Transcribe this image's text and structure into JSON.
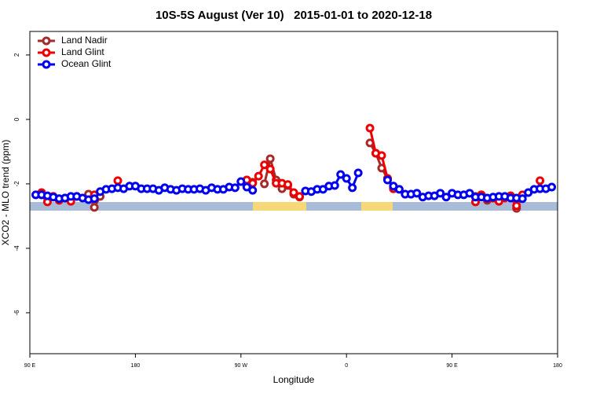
{
  "chart_data": {
    "type": "line",
    "title": "10S-5S August (Ver 10)   2015-01-01 to 2020-12-18",
    "x_label": "Longitude",
    "y_label": "XCO2 - MLO trend (ppm)",
    "xlim": [
      90,
      540
    ],
    "ylim": [
      -7.27,
      2.73
    ],
    "xticks": [
      {
        "value": 90,
        "label": "90 E"
      },
      {
        "value": 180,
        "label": "180"
      },
      {
        "value": 270,
        "label": "90 W"
      },
      {
        "value": 360,
        "label": "0"
      },
      {
        "value": 450,
        "label": "90 E"
      },
      {
        "value": 540,
        "label": "180"
      }
    ],
    "yticks": [
      2,
      0,
      -2,
      -4,
      -6
    ],
    "legend": "top-left",
    "x": [
      95,
      100,
      105,
      110,
      115,
      120,
      125,
      130,
      135,
      140,
      145,
      150,
      155,
      160,
      165,
      170,
      175,
      180,
      185,
      190,
      195,
      200,
      205,
      210,
      215,
      220,
      225,
      230,
      235,
      240,
      245,
      250,
      255,
      260,
      265,
      270,
      275,
      280,
      285,
      290,
      295,
      300,
      305,
      310,
      315,
      320,
      325,
      330,
      335,
      340,
      345,
      350,
      355,
      360,
      365,
      370,
      375,
      380,
      385,
      390,
      395,
      400,
      405,
      410,
      415,
      420,
      425,
      430,
      435,
      440,
      445,
      450,
      455,
      460,
      465,
      470,
      475,
      480,
      485,
      490,
      495,
      500,
      505,
      510,
      515,
      520,
      525,
      530,
      535
    ],
    "series": [
      {
        "name": "Land Nadir",
        "color": "#a52a2a",
        "values": [
          null,
          -2.34,
          -2.44,
          -2.39,
          null,
          null,
          null,
          null,
          null,
          -2.32,
          -2.73,
          -2.39,
          null,
          null,
          null,
          null,
          null,
          null,
          null,
          null,
          null,
          null,
          null,
          null,
          null,
          null,
          null,
          null,
          null,
          null,
          null,
          null,
          null,
          null,
          null,
          null,
          -1.88,
          -1.95,
          null,
          -2.0,
          -1.22,
          -1.88,
          -2.15,
          -2.05,
          -2.32,
          -2.41,
          null,
          null,
          null,
          null,
          null,
          null,
          null,
          null,
          null,
          null,
          null,
          -0.73,
          -1.05,
          -1.51,
          -1.83,
          -2.15,
          null,
          null,
          null,
          null,
          null,
          null,
          null,
          null,
          null,
          null,
          null,
          null,
          null,
          -2.39,
          -2.34,
          -2.51,
          -2.44,
          -2.44,
          -2.41,
          -2.37,
          -2.76,
          -2.37,
          null,
          null,
          null,
          null,
          null
        ]
      },
      {
        "name": "Land Glint",
        "color": "#ee0000",
        "values": [
          null,
          -2.27,
          -2.56,
          -2.39,
          -2.51,
          -2.44,
          -2.54,
          -2.39,
          null,
          null,
          -2.34,
          null,
          null,
          null,
          -1.9,
          null,
          null,
          null,
          null,
          null,
          null,
          null,
          null,
          null,
          null,
          null,
          null,
          null,
          null,
          null,
          null,
          null,
          null,
          null,
          null,
          null,
          -1.88,
          -1.98,
          -1.76,
          -1.41,
          -1.54,
          -1.98,
          -1.98,
          -2.02,
          -2.27,
          -2.39,
          null,
          null,
          null,
          null,
          null,
          null,
          null,
          null,
          null,
          null,
          null,
          -0.27,
          -1.05,
          -1.12,
          -1.83,
          -2.15,
          null,
          null,
          null,
          null,
          null,
          null,
          null,
          null,
          null,
          null,
          null,
          null,
          null,
          -2.56,
          -2.34,
          -2.46,
          -2.44,
          -2.54,
          -2.44,
          -2.37,
          -2.68,
          -2.34,
          null,
          null,
          -1.9,
          null,
          null
        ]
      },
      {
        "name": "Ocean Glint",
        "color": "#0000ee",
        "values": [
          -2.34,
          -2.34,
          -2.37,
          -2.41,
          -2.46,
          -2.44,
          -2.39,
          -2.39,
          -2.44,
          -2.49,
          -2.46,
          -2.24,
          -2.17,
          -2.15,
          -2.12,
          -2.15,
          -2.07,
          -2.07,
          -2.15,
          -2.15,
          -2.15,
          -2.2,
          -2.12,
          -2.17,
          -2.2,
          -2.15,
          -2.17,
          -2.17,
          -2.15,
          -2.2,
          -2.12,
          -2.17,
          -2.17,
          -2.1,
          -2.12,
          -1.93,
          -2.1,
          -2.2,
          null,
          null,
          null,
          null,
          null,
          null,
          null,
          null,
          -2.22,
          -2.24,
          -2.17,
          -2.17,
          -2.07,
          -2.05,
          -1.71,
          -1.83,
          -2.12,
          -1.66,
          null,
          null,
          null,
          null,
          -1.88,
          -2.07,
          -2.17,
          -2.32,
          -2.32,
          -2.29,
          -2.41,
          -2.37,
          -2.37,
          -2.29,
          -2.41,
          -2.29,
          -2.34,
          -2.34,
          -2.29,
          -2.41,
          -2.41,
          -2.44,
          -2.41,
          -2.39,
          -2.39,
          -2.44,
          -2.44,
          -2.46,
          -2.27,
          -2.17,
          -2.15,
          -2.15,
          -2.1
        ]
      }
    ]
  }
}
